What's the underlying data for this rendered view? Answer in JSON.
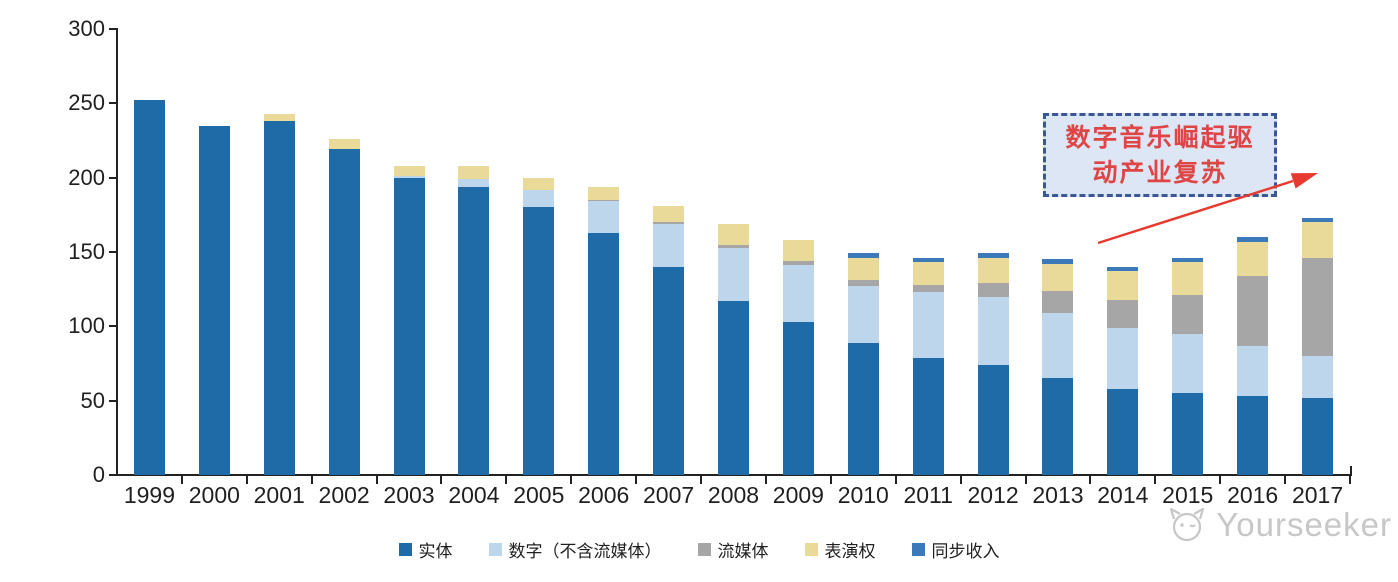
{
  "annotation": {
    "lines": [
      "数字音乐崛起驱",
      "动产业复苏"
    ],
    "text_color": "#E04545",
    "bg_color": "#DCE6F4",
    "border_color": "#3A5894",
    "arrow_color": "#E8392E"
  },
  "watermark": {
    "brand": "Yourseeker",
    "icon": "cat-face-icon"
  },
  "chart_data": {
    "type": "bar",
    "stacked": true,
    "title": "",
    "xlabel": "",
    "ylabel": "",
    "ylim": [
      0,
      300
    ],
    "yticks": [
      0,
      50,
      100,
      150,
      200,
      250,
      300
    ],
    "grid": false,
    "legend_position": "bottom",
    "categories": [
      "1999",
      "2000",
      "2001",
      "2002",
      "2003",
      "2004",
      "2005",
      "2006",
      "2007",
      "2008",
      "2009",
      "2010",
      "2011",
      "2012",
      "2013",
      "2014",
      "2015",
      "2016",
      "2017"
    ],
    "series": [
      {
        "name": "实体",
        "color": "#1E6BA8",
        "values": [
          252,
          235,
          238,
          219,
          200,
          194,
          180,
          163,
          140,
          117,
          103,
          89,
          79,
          74,
          65,
          58,
          55,
          53,
          52
        ]
      },
      {
        "name": "数字（不含流媒体）",
        "color": "#BDD6EC",
        "values": [
          0,
          0,
          0,
          0,
          1,
          5,
          12,
          21,
          29,
          36,
          38,
          38,
          44,
          46,
          44,
          41,
          40,
          34,
          28
        ]
      },
      {
        "name": "流媒体",
        "color": "#A6A6A6",
        "values": [
          0,
          0,
          0,
          0,
          0,
          0,
          0,
          1,
          1,
          2,
          3,
          4,
          5,
          9,
          15,
          19,
          26,
          47,
          66
        ]
      },
      {
        "name": "表演权",
        "color": "#E9DA9A",
        "values": [
          0,
          0,
          5,
          7,
          7,
          9,
          8,
          9,
          11,
          14,
          14,
          15,
          15,
          17,
          18,
          19,
          22,
          23,
          24
        ]
      },
      {
        "name": "同步收入",
        "color": "#3C79B8",
        "values": [
          0,
          0,
          0,
          0,
          0,
          0,
          0,
          0,
          0,
          0,
          0,
          3,
          3,
          3,
          3,
          3,
          3,
          3,
          3
        ]
      }
    ]
  }
}
